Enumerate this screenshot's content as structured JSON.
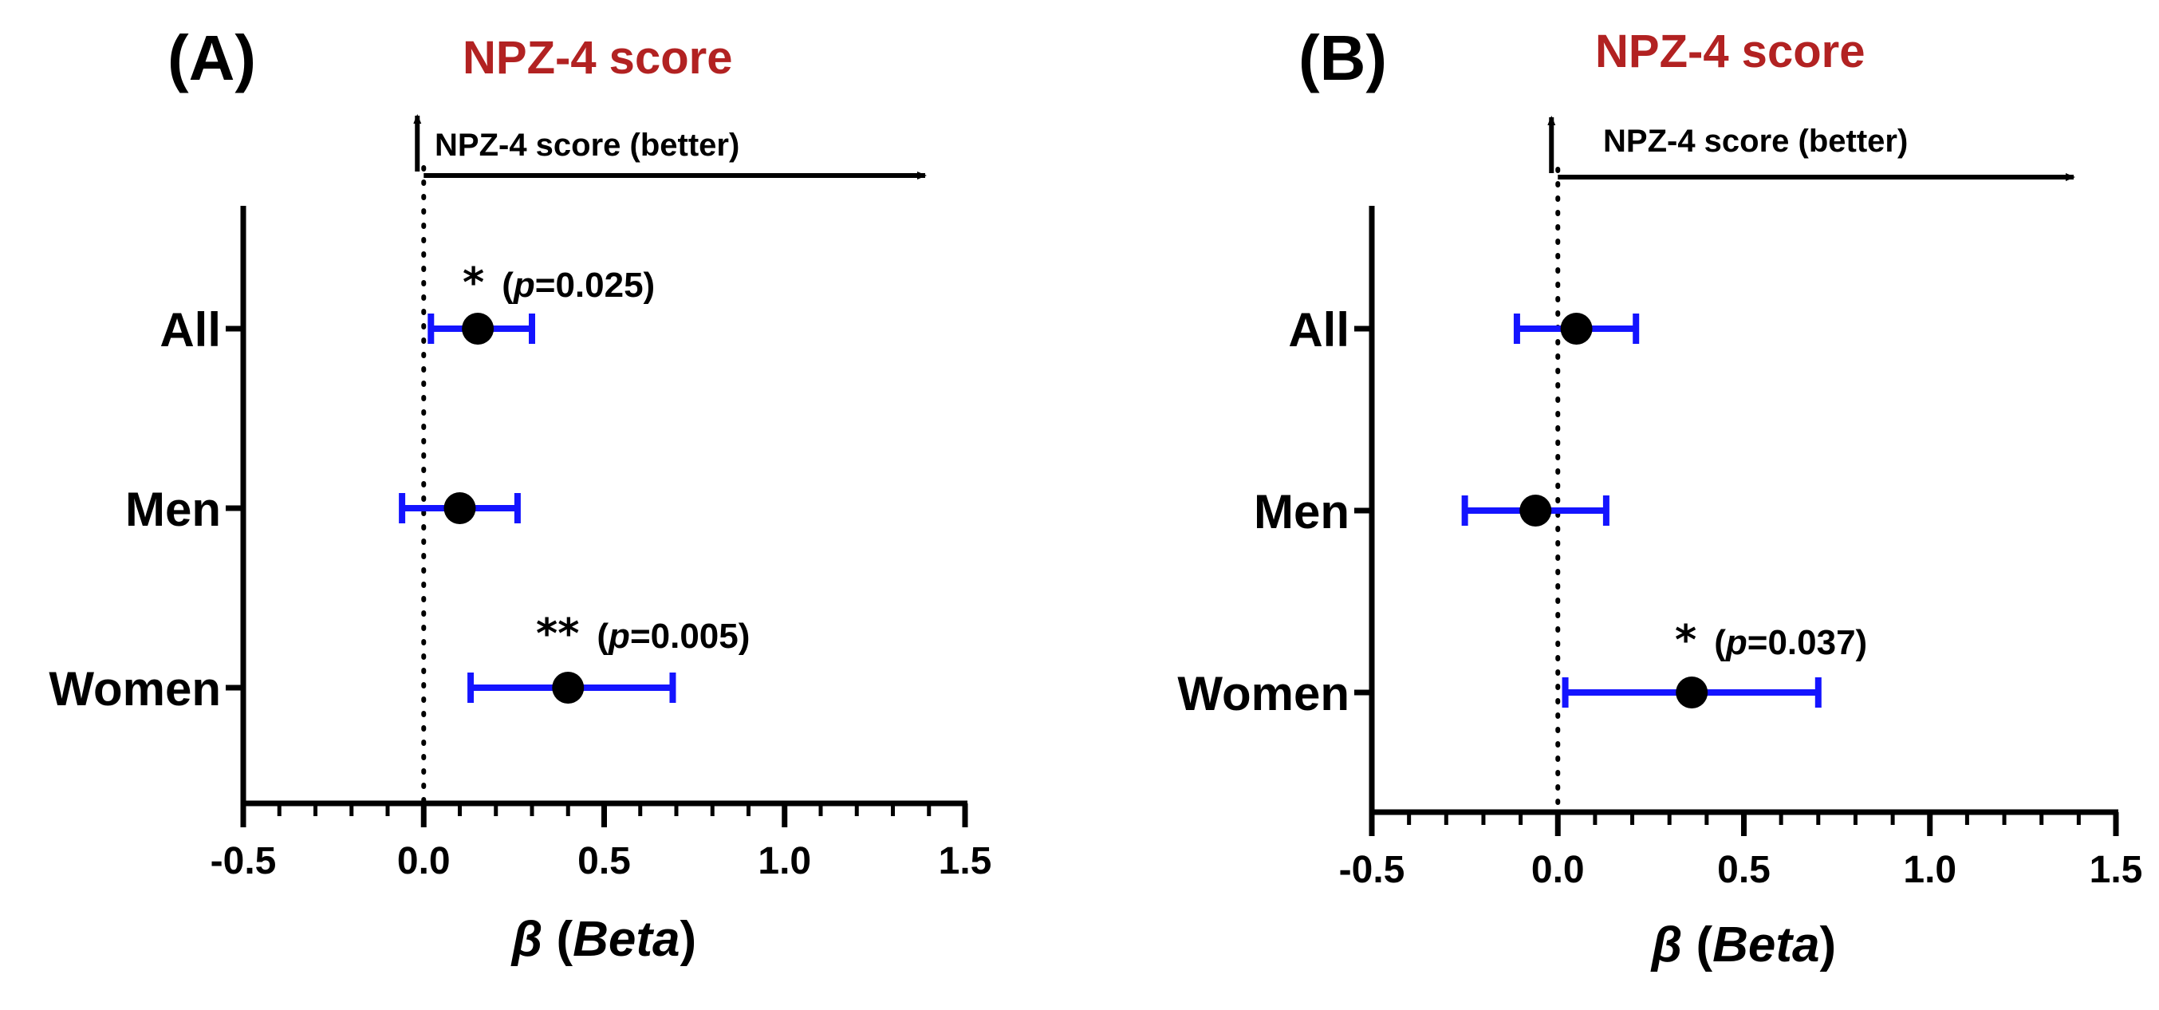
{
  "chart_data": [
    {
      "type": "forest",
      "panel_label": "(A)",
      "title": "NPZ-4 score",
      "direction_label": "NPZ-4 score (better)",
      "xlabel_symbol": "β",
      "xlabel_open": "(",
      "xlabel_text": "Beta",
      "xlabel_close": ")",
      "ylabel": "",
      "xlim": [
        -0.5,
        1.5
      ],
      "xticks": [
        "-0.5",
        "0.0",
        "0.5",
        "1.0",
        "1.5"
      ],
      "xtick_values": [
        -0.5,
        0.0,
        0.5,
        1.0,
        1.5
      ],
      "reference_line": 0.0,
      "categories": [
        "All",
        "Men",
        "Women"
      ],
      "estimates": [
        0.15,
        0.1,
        0.4
      ],
      "ci_lower": [
        0.02,
        -0.06,
        0.13
      ],
      "ci_upper": [
        0.3,
        0.26,
        0.69
      ],
      "significance": [
        {
          "stars": "*",
          "p_label": "p",
          "p_value": "=0.025)",
          "open": "("
        },
        {
          "stars": "",
          "p_label": "",
          "p_value": "",
          "open": ""
        },
        {
          "stars": "**",
          "p_label": "p",
          "p_value": "=0.005)",
          "open": "("
        }
      ]
    },
    {
      "type": "forest",
      "panel_label": "(B)",
      "title": "NPZ-4 score",
      "direction_label": "NPZ-4 score (better)",
      "xlabel_symbol": "β",
      "xlabel_open": "(",
      "xlabel_text": "Beta",
      "xlabel_close": ")",
      "ylabel": "",
      "xlim": [
        -0.5,
        1.5
      ],
      "xticks": [
        "-0.5",
        "0.0",
        "0.5",
        "1.0",
        "1.5"
      ],
      "xtick_values": [
        -0.5,
        0.0,
        0.5,
        1.0,
        1.5
      ],
      "reference_line": 0.0,
      "categories": [
        "All",
        "Men",
        "Women"
      ],
      "estimates": [
        0.05,
        -0.06,
        0.36
      ],
      "ci_lower": [
        -0.11,
        -0.25,
        0.02
      ],
      "ci_upper": [
        0.21,
        0.13,
        0.7
      ],
      "significance": [
        {
          "stars": "",
          "p_label": "",
          "p_value": "",
          "open": ""
        },
        {
          "stars": "",
          "p_label": "",
          "p_value": "",
          "open": ""
        },
        {
          "stars": "*",
          "p_label": "p",
          "p_value": "=0.037)",
          "open": "("
        }
      ]
    }
  ],
  "colors": {
    "title": "#b22222",
    "error_bar": "#1414ff",
    "point": "#000000",
    "axis": "#000000"
  }
}
